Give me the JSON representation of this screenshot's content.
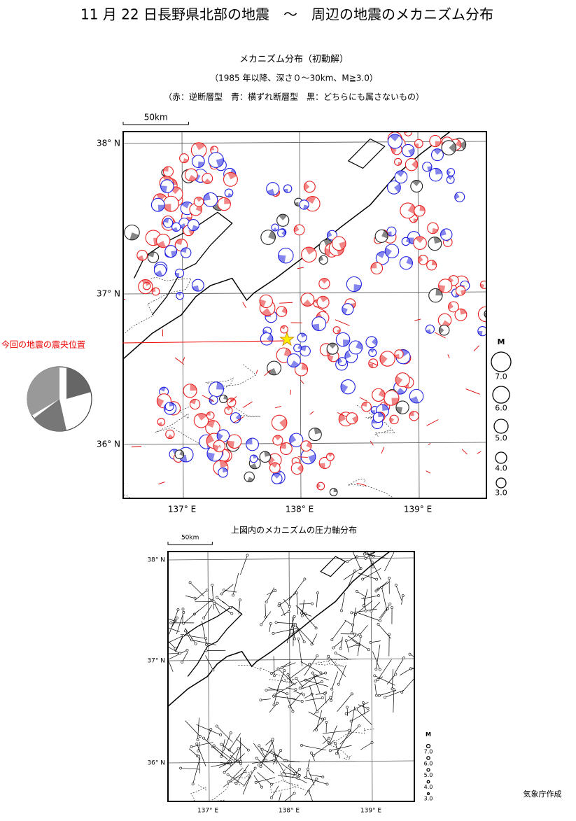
{
  "title": "11 月 22 日長野県北部の地震　～　周辺の地震のメカニズム分布",
  "map1": {
    "title": "メカニズム分布（初動解）",
    "subtitle": "（1985 年以降、深さ０～30km、M≧3.0）",
    "color_note": "（赤：逆断層型　青：横ずれ断層型　黒：どちらにも属さないもの）",
    "scale": "50km",
    "lat_labels": [
      "38° N",
      "37° N",
      "36° N"
    ],
    "lon_labels": [
      "137° E",
      "138° E",
      "139° E"
    ],
    "magnitude_legend": {
      "title": "M",
      "labels": [
        "7.0",
        "6.0",
        "5.0",
        "4.0",
        "3.0"
      ]
    },
    "annotation": "今回の地震の震央位置"
  },
  "map2": {
    "title": "上図内のメカニズムの圧力軸分布",
    "scale": "50km",
    "lat_labels": [
      "38° N",
      "37° N",
      "36° N"
    ],
    "lon_labels": [
      "137° E",
      "138° E",
      "139° E"
    ],
    "magnitude_legend": {
      "title": "M",
      "labels": [
        "7.0",
        "6.0",
        "5.0",
        "4.0",
        "3.0"
      ]
    }
  },
  "credit": "気象庁作成"
}
